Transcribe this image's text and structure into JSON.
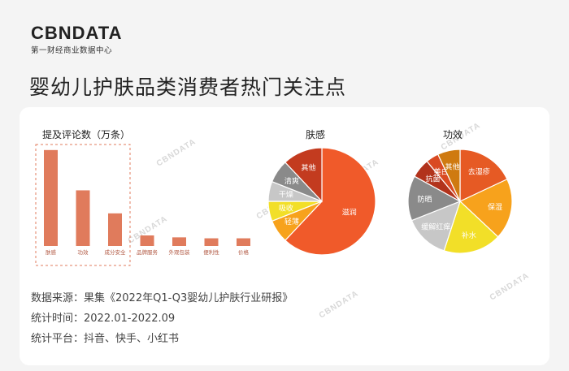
{
  "brand": {
    "logo_text": "CBNDATA",
    "logo_subtitle": "第一财经商业数据中心"
  },
  "page_title": "婴幼儿护肤品类消费者热门关注点",
  "chart_data": [
    {
      "type": "bar",
      "title": "提及评论数（万条）",
      "categories": [
        "肤感",
        "功效",
        "成分安全",
        "品牌服务",
        "外观包装",
        "便利性",
        "价格"
      ],
      "values": [
        100,
        58,
        34,
        11,
        9,
        8,
        8
      ],
      "ylim": [
        0,
        110
      ],
      "highlight_categories": [
        "肤感",
        "功效",
        "成分安全"
      ],
      "bar_color": "#e07b5c"
    },
    {
      "type": "pie",
      "title": "肤感",
      "slices": [
        {
          "label": "滋润",
          "value": 62,
          "color": "#f05a2a"
        },
        {
          "label": "轻薄",
          "value": 7,
          "color": "#f7a21c"
        },
        {
          "label": "吸收",
          "value": 6,
          "color": "#f2df28"
        },
        {
          "label": "干燥",
          "value": 6,
          "color": "#c7c7c7"
        },
        {
          "label": "清爽",
          "value": 7,
          "color": "#8a8a8a"
        },
        {
          "label": "其他",
          "value": 12,
          "color": "#c33b1f"
        }
      ]
    },
    {
      "type": "pie",
      "title": "功效",
      "slices": [
        {
          "label": "去湿疹",
          "value": 18,
          "color": "#e65a24"
        },
        {
          "label": "保湿",
          "value": 19,
          "color": "#f7a21c"
        },
        {
          "label": "补水",
          "value": 18,
          "color": "#f2df28"
        },
        {
          "label": "缓解红痒",
          "value": 14,
          "color": "#c7c7c7"
        },
        {
          "label": "防晒",
          "value": 14,
          "color": "#8a8a8a"
        },
        {
          "label": "抗菌",
          "value": 6,
          "color": "#b2331c"
        },
        {
          "label": "美白",
          "value": 4,
          "color": "#d94a22"
        },
        {
          "label": "其他",
          "value": 7,
          "color": "#cf7a10"
        }
      ]
    }
  ],
  "footer": {
    "source": "数据来源：果集《2022年Q1-Q3婴幼儿护肤行业研报》",
    "period": "统计时间：2022.01-2022.09",
    "platforms": "统计平台：抖音、快手、小红书"
  },
  "watermark": "CBNDATA"
}
